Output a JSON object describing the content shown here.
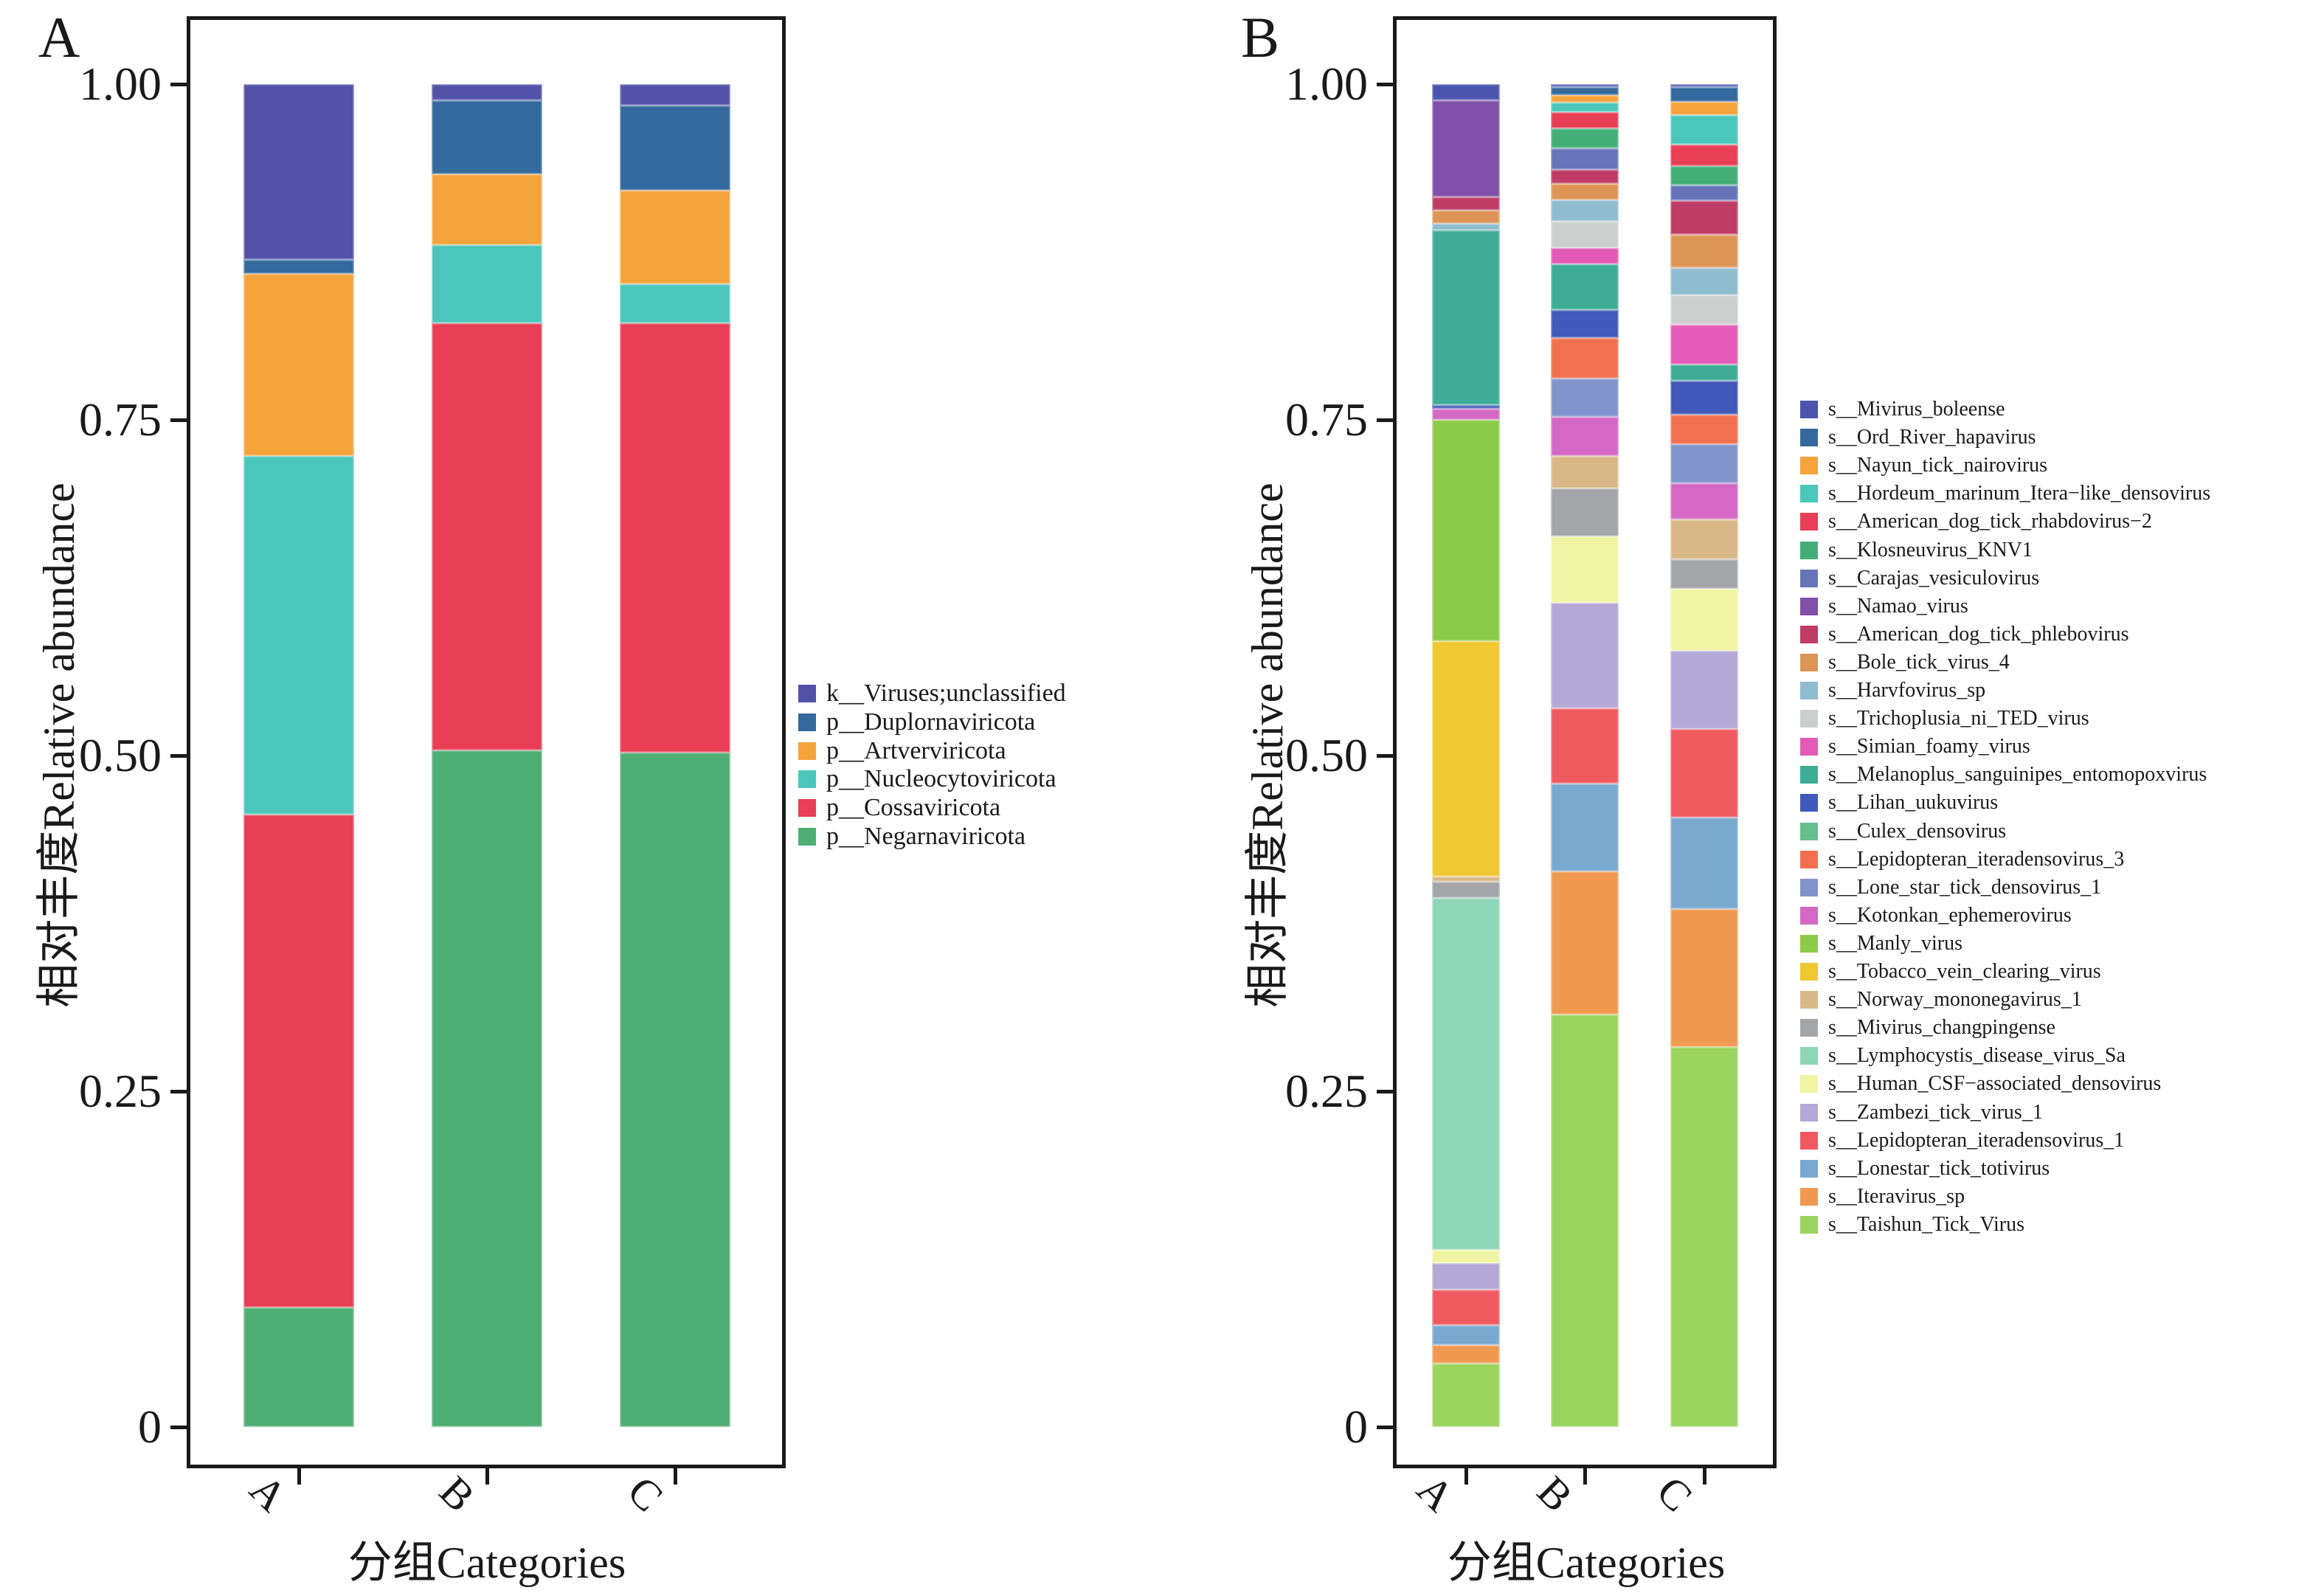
{
  "chart_data": [
    {
      "type": "stacked_bar",
      "panel": "A",
      "categories": [
        "A",
        "B",
        "C"
      ],
      "xlabel": "分组Categories",
      "ylabel": "相对丰度Relative abundance",
      "yticks": [
        "1.00",
        "0.75",
        "0.50",
        "0.25",
        "0"
      ],
      "ylim": [
        0,
        1
      ],
      "grid": false,
      "legend_position": "right",
      "series": [
        {
          "name": "k__Viruses;unclassified",
          "color": "#5352A8",
          "values": [
            0.131,
            0.012,
            0.016
          ]
        },
        {
          "name": "p__Duplornaviricota",
          "color": "#33699C",
          "values": [
            0.01,
            0.055,
            0.063
          ]
        },
        {
          "name": "p__Artverviricota",
          "color": "#F5A33B",
          "values": [
            0.136,
            0.053,
            0.07
          ]
        },
        {
          "name": "p__Nucleocytoviricota",
          "color": "#4BC6BB",
          "values": [
            0.267,
            0.058,
            0.029
          ]
        },
        {
          "name": "p__Cossaviricota",
          "color": "#E83E56",
          "values": [
            0.367,
            0.318,
            0.32
          ]
        },
        {
          "name": "p__Negarnaviricota",
          "color": "#4FAE74",
          "values": [
            0.089,
            0.504,
            0.502
          ]
        }
      ]
    },
    {
      "type": "stacked_bar",
      "panel": "B",
      "categories": [
        "A",
        "B",
        "C"
      ],
      "xlabel": "分组Categories",
      "ylabel": "相对丰度Relative abundance",
      "yticks": [
        "1.00",
        "0.75",
        "0.50",
        "0.25",
        "0"
      ],
      "ylim": [
        0,
        1
      ],
      "grid": false,
      "legend_position": "right",
      "series": [
        {
          "name": "s__Mivirus_boleense",
          "color": "#4C55AC",
          "values": [
            0.012,
            0.002,
            0.002
          ]
        },
        {
          "name": "s__Ord_River_hapavirus",
          "color": "#33699C",
          "values": [
            0.0,
            0.006,
            0.011
          ]
        },
        {
          "name": "s__Nayun_tick_nairovirus",
          "color": "#F5A33B",
          "values": [
            0.0,
            0.006,
            0.01
          ]
        },
        {
          "name": "s__Hordeum_marinum_Itera−like_densovirus",
          "color": "#4BC6BB",
          "values": [
            0.0,
            0.007,
            0.022
          ]
        },
        {
          "name": "s__American_dog_tick_rhabdovirus−2",
          "color": "#E83E56",
          "values": [
            0.0,
            0.012,
            0.016
          ]
        },
        {
          "name": "s__Klosneuvirus_KNV1",
          "color": "#44AE77",
          "values": [
            0.0,
            0.015,
            0.014
          ]
        },
        {
          "name": "s__Carajas_vesiculovirus",
          "color": "#6674B8",
          "values": [
            0.0,
            0.016,
            0.012
          ]
        },
        {
          "name": "s__Namao_virus",
          "color": "#8150A8",
          "values": [
            0.072,
            0.0,
            0.0
          ]
        },
        {
          "name": "s__American_dog_tick_phlebovirus",
          "color": "#BE3C66",
          "values": [
            0.01,
            0.01,
            0.025
          ]
        },
        {
          "name": "s__Bole_tick_virus_4",
          "color": "#DD9557",
          "values": [
            0.01,
            0.012,
            0.025
          ]
        },
        {
          "name": "s__Harvfovirus_sp",
          "color": "#8FBCCF",
          "values": [
            0.005,
            0.016,
            0.02
          ]
        },
        {
          "name": "s__Trichoplusia_ni_TED_virus",
          "color": "#CCCFCE",
          "values": [
            0.0,
            0.02,
            0.022
          ]
        },
        {
          "name": "s__Simian_foamy_virus",
          "color": "#E35BB6",
          "values": [
            0.0,
            0.012,
            0.03
          ]
        },
        {
          "name": "s__Melanoplus_sanguinipes_entomopoxvirus",
          "color": "#3FAD96",
          "values": [
            0.13,
            0.034,
            0.012
          ]
        },
        {
          "name": "s__Lihan_uukuvirus",
          "color": "#4159B8",
          "values": [
            0.003,
            0.021,
            0.025
          ]
        },
        {
          "name": "s__Culex_densovirus",
          "color": "#64C08C",
          "values": [
            0.0,
            0.0,
            0.0
          ]
        },
        {
          "name": "s__Lepidopteran_iteradensovirus_3",
          "color": "#F3704F",
          "values": [
            0.0,
            0.03,
            0.022
          ]
        },
        {
          "name": "s__Lone_star_tick_densovirus_1",
          "color": "#8294CC",
          "values": [
            0.0,
            0.029,
            0.029
          ]
        },
        {
          "name": "s__Kotonkan_ephemerovirus",
          "color": "#D468C4",
          "values": [
            0.008,
            0.029,
            0.027
          ]
        },
        {
          "name": "s__Manly_virus",
          "color": "#8CCB47",
          "values": [
            0.165,
            0.0,
            0.0
          ]
        },
        {
          "name": "s__Tobacco_vein_clearing_virus",
          "color": "#EFC832",
          "values": [
            0.175,
            0.0,
            0.0
          ]
        },
        {
          "name": "s__Norway_mononegavirus_1",
          "color": "#D9B888",
          "values": [
            0.004,
            0.024,
            0.03
          ]
        },
        {
          "name": "s__Mivirus_changpingense",
          "color": "#A3A5A8",
          "values": [
            0.012,
            0.036,
            0.022
          ]
        },
        {
          "name": "s__Lymphocystis_disease_virus_Sa",
          "color": "#8DD6B8",
          "values": [
            0.262,
            0.0,
            0.0
          ]
        },
        {
          "name": "s__Human_CSF−associated_densovirus",
          "color": "#EFF5A2",
          "values": [
            0.01,
            0.049,
            0.046
          ]
        },
        {
          "name": "s__Zambezi_tick_virus_1",
          "color": "#B3A8D6",
          "values": [
            0.02,
            0.079,
            0.058
          ]
        },
        {
          "name": "s__Lepidopteran_iteradensovirus_1",
          "color": "#EF5A60",
          "values": [
            0.026,
            0.056,
            0.066
          ]
        },
        {
          "name": "s__Lonestar_tick_totivirus",
          "color": "#79A9CF",
          "values": [
            0.015,
            0.065,
            0.068
          ]
        },
        {
          "name": "s__Iteravirus_sp",
          "color": "#F09A51",
          "values": [
            0.014,
            0.107,
            0.103
          ]
        },
        {
          "name": "s__Taishun_Tick_Virus",
          "color": "#9BD45E",
          "values": [
            0.047,
            0.307,
            0.283
          ]
        }
      ]
    }
  ]
}
